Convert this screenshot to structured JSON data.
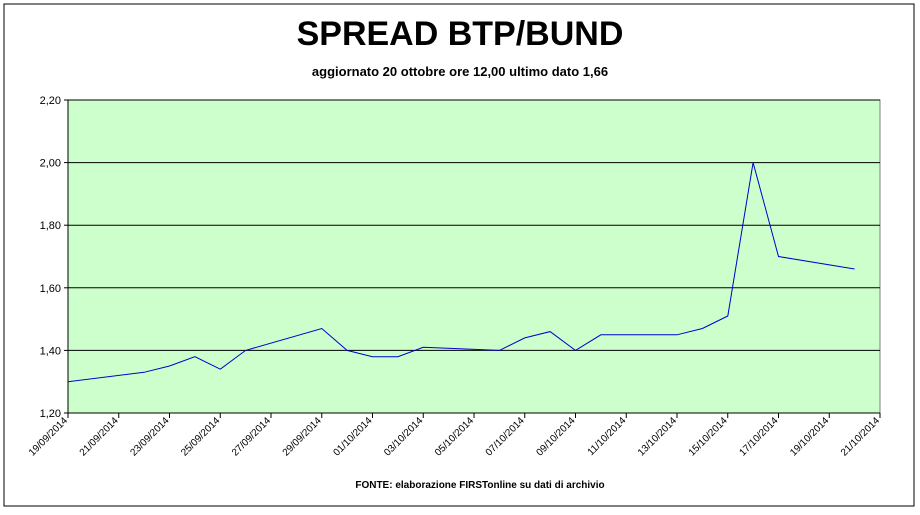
{
  "chart_data": {
    "type": "line",
    "title": "SPREAD BTP/BUND",
    "subtitle": "aggiornato 20 ottobre ore 12,00 ultimo dato 1,66",
    "source": "FONTE: elaborazione FIRSTonline su dati di archivio",
    "x": [
      "19/09/2014",
      "22/09/2014",
      "23/09/2014",
      "24/09/2014",
      "25/09/2014",
      "26/09/2014",
      "29/09/2014",
      "30/09/2014",
      "01/10/2014",
      "02/10/2014",
      "03/10/2014",
      "06/10/2014",
      "07/10/2014",
      "08/10/2014",
      "09/10/2014",
      "10/10/2014",
      "13/10/2014",
      "14/10/2014",
      "15/10/2014",
      "16/10/2014",
      "17/10/2014",
      "20/10/2014"
    ],
    "series": [
      {
        "name": "Spread",
        "color": "#0000cc",
        "values": [
          1.3,
          1.33,
          1.35,
          1.38,
          1.34,
          1.4,
          1.47,
          1.4,
          1.38,
          1.38,
          1.41,
          1.4,
          1.44,
          1.46,
          1.4,
          1.45,
          1.45,
          1.47,
          1.51,
          2.0,
          1.7,
          1.66
        ]
      }
    ],
    "xlim": [
      "19/09/2014",
      "21/10/2014"
    ],
    "xticks": [
      "19/09/2014",
      "21/09/2014",
      "23/09/2014",
      "25/09/2014",
      "27/09/2014",
      "29/09/2014",
      "01/10/2014",
      "03/10/2014",
      "05/10/2014",
      "07/10/2014",
      "09/10/2014",
      "11/10/2014",
      "13/10/2014",
      "15/10/2014",
      "17/10/2014",
      "19/10/2014",
      "21/10/2014"
    ],
    "ylim": [
      1.2,
      2.2
    ],
    "yticks": [
      {
        "value": 1.2,
        "label": "1,20"
      },
      {
        "value": 1.4,
        "label": "1,40"
      },
      {
        "value": 1.6,
        "label": "1,60"
      },
      {
        "value": 1.8,
        "label": "1,80"
      },
      {
        "value": 2.0,
        "label": "2,00"
      },
      {
        "value": 2.2,
        "label": "2,20"
      }
    ],
    "grid": true,
    "background": "#ccffcc"
  }
}
